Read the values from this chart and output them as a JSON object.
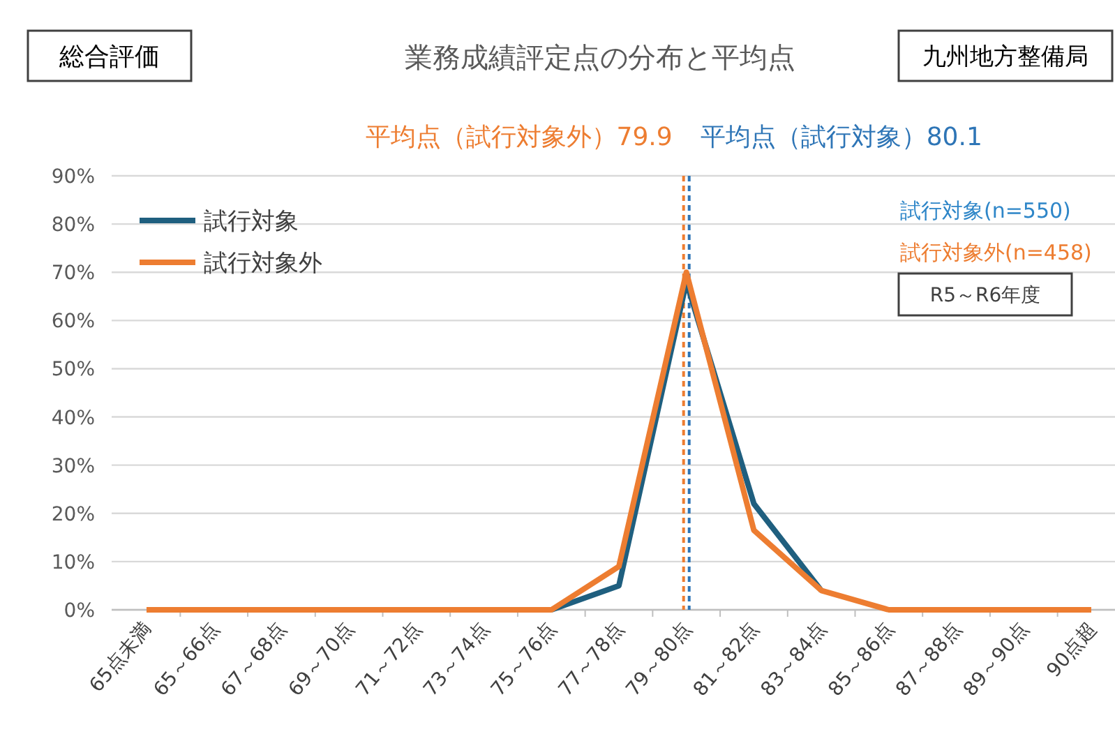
{
  "chart_data": {
    "type": "line",
    "title": "業務成績評定点の分布と平均点",
    "categories": [
      "65点未満",
      "65～66点",
      "67～68点",
      "69～70点",
      "71～72点",
      "73～74点",
      "75～76点",
      "77～78点",
      "79～80点",
      "81～82点",
      "83～84点",
      "85～86点",
      "87～88点",
      "89～90点",
      "90点超"
    ],
    "series": [
      {
        "name": "試行対象",
        "color": "#1f5f7f",
        "values": [
          null,
          null,
          null,
          null,
          null,
          null,
          0,
          5,
          68,
          22,
          4,
          null,
          null,
          null,
          null
        ]
      },
      {
        "name": "試行対象外",
        "color": "#ed7d31",
        "values": [
          0,
          0,
          0,
          0,
          0,
          0,
          0,
          9,
          70,
          16.5,
          4,
          0,
          0,
          0,
          0
        ]
      }
    ],
    "ylim": [
      0,
      90
    ],
    "yticks": [
      {
        "value": 0,
        "label": "0%"
      },
      {
        "value": 10,
        "label": "10%"
      },
      {
        "value": 20,
        "label": "20%"
      },
      {
        "value": 30,
        "label": "30%"
      },
      {
        "value": 40,
        "label": "40%"
      },
      {
        "value": 50,
        "label": "50%"
      },
      {
        "value": 60,
        "label": "60%"
      },
      {
        "value": 70,
        "label": "70%"
      },
      {
        "value": 80,
        "label": "80%"
      },
      {
        "value": 90,
        "label": "90%"
      }
    ],
    "ref_lines": [
      {
        "axis": "x",
        "value": "79～80点",
        "label": "平均点（試行対象外）79.9",
        "color": "#ed7d31",
        "line_style": "dashed"
      },
      {
        "axis": "x",
        "value": "79～80点",
        "label": "平均点（試行対象）80.1",
        "color": "#2e75b6",
        "line_style": "dashed"
      }
    ],
    "annotations": [
      "総合評価",
      "九州地方整備局",
      "試行対象(n=550)",
      "試行対象外(n=458)",
      "R5～R6年度"
    ],
    "grid": "y",
    "legend": "top left",
    "marker": "none",
    "line_style": "solid"
  }
}
